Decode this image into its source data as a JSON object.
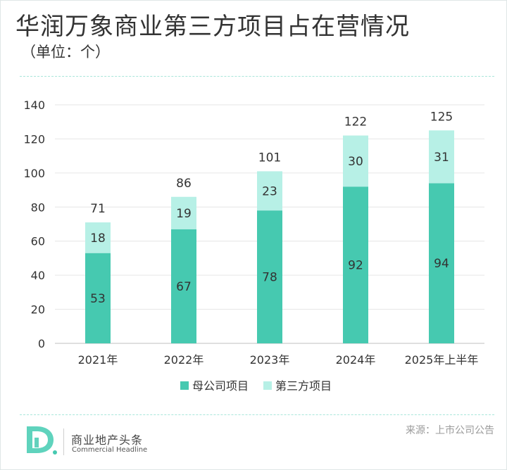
{
  "header": {
    "title": "华润万象商业第三方项目占在营情况",
    "subtitle": "（单位：个）"
  },
  "chart_data": {
    "type": "bar",
    "stacked": true,
    "categories": [
      "2021年",
      "2022年",
      "2023年",
      "2024年",
      "2025年上半年"
    ],
    "series": [
      {
        "name": "母公司项目",
        "values": [
          53,
          67,
          78,
          92,
          94
        ],
        "color": "#46c9b0"
      },
      {
        "name": "第三方项目",
        "values": [
          18,
          19,
          23,
          30,
          31
        ],
        "color": "#b7f0e6"
      }
    ],
    "totals": [
      71,
      86,
      101,
      122,
      125
    ],
    "ylim": [
      0,
      140
    ],
    "yticks": [
      0,
      20,
      40,
      60,
      80,
      100,
      120,
      140
    ],
    "grid": true,
    "legend_position": "bottom"
  },
  "footer": {
    "logo_letter": "D",
    "brand_cn": "商业地产头条",
    "brand_en": "Commercial Headline",
    "source": "来源：上市公司公告"
  },
  "colors": {
    "accent": "#46c9b0",
    "accent_light": "#b7f0e6",
    "divider": "#a9e6da"
  }
}
